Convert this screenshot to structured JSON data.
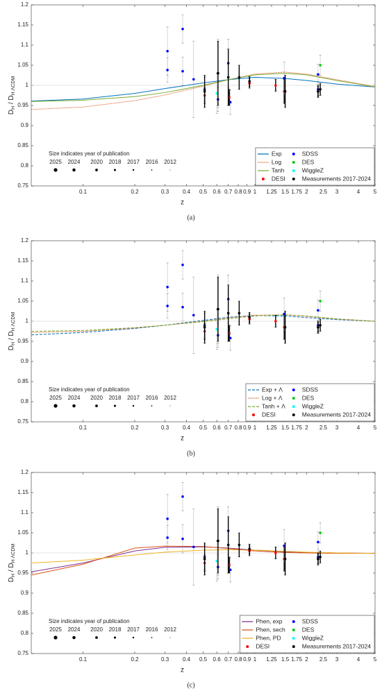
{
  "chart_data": [
    {
      "type": "scatter",
      "caption": "(a)",
      "xlabel": "z",
      "ylabel": [
        "D",
        "H",
        " / D",
        "H ΛCDM"
      ],
      "annotation": "Size indicates year of publication",
      "size_labels": [
        "2025",
        "2024",
        "2020",
        "2018",
        "2017",
        "2016",
        "2012"
      ],
      "xscale": "log",
      "xlim": [
        0.05,
        5
      ],
      "ylim": [
        0.75,
        1.2
      ],
      "xticks": [
        0.1,
        0.2,
        0.3,
        0.4,
        0.5,
        0.6,
        0.7,
        0.8,
        0.9,
        1,
        1.25,
        1.5,
        1.75,
        2,
        2.5,
        3,
        4,
        5
      ],
      "yticks": [
        0.75,
        0.8,
        0.85,
        0.9,
        0.95,
        1,
        1.05,
        1.1,
        1.15,
        1.2
      ],
      "reference_y": 1,
      "legend": "lower right",
      "curves": {
        "x": [
          0.05,
          0.1,
          0.2,
          0.3,
          0.5,
          0.7,
          1,
          1.5,
          2,
          3,
          5
        ],
        "series": [
          {
            "name": "Exp",
            "color": "#0072bd",
            "dash": "solid",
            "values": [
              0.961,
              0.966,
              0.98,
              0.992,
              1.006,
              1.014,
              1.02,
              1.017,
              1.012,
              1.003,
              0.996
            ]
          },
          {
            "name": "Log",
            "color": "#d95319",
            "dash": "dotted",
            "values": [
              0.94,
              0.946,
              0.962,
              0.976,
              0.998,
              1.014,
              1.028,
              1.033,
              1.028,
              1.014,
              0.997
            ]
          },
          {
            "name": "Tanh",
            "color": "#77ac30",
            "dash": "solid",
            "values": [
              0.96,
              0.963,
              0.972,
              0.982,
              1.0,
              1.014,
              1.026,
              1.03,
              1.026,
              1.012,
              0.996
            ]
          }
        ]
      },
      "points": [
        {
          "name": "DESI",
          "color": "#ff0000",
          "error_color": "#000000",
          "x": [
            0.51,
            0.71,
            0.93,
            1.32,
            1.48,
            2.33
          ],
          "values": [
            0.975,
            0.97,
            1.005,
            1.0,
            0.985,
            0.985
          ],
          "errors": [
            0.02,
            0.02,
            0.012,
            0.015,
            0.03,
            0.012
          ]
        },
        {
          "name": "SDSS",
          "color": "#0000ff",
          "error_color": "#888888",
          "x": [
            0.31,
            0.31,
            0.38,
            0.38,
            0.44,
            0.51,
            0.61,
            0.61,
            0.7,
            0.72,
            1.48,
            2.33,
            2.33
          ],
          "values": [
            1.085,
            1.038,
            1.14,
            1.035,
            1.015,
            0.99,
            1.03,
            0.965,
            1.055,
            0.958,
            1.018,
            1.027,
            0.99
          ],
          "errors": [
            0.06,
            0.03,
            0.035,
            0.035,
            0.095,
            0.03,
            0.085,
            0.03,
            0.06,
            0.03,
            0.04,
            0.025,
            0.02
          ]
        },
        {
          "name": "DES",
          "color": "#00cc00",
          "error_color": "#888888",
          "x": [
            2.4
          ],
          "values": [
            1.05
          ],
          "errors": [
            0.025
          ]
        },
        {
          "name": "WiggleZ",
          "color": "#00ffff",
          "error_color": "#888888",
          "x": [
            0.6
          ],
          "values": [
            0.98
          ],
          "errors": [
            0.05
          ]
        },
        {
          "name": "Measurements 2017-2024",
          "color": "#000000",
          "error_color": "#000000",
          "x": [
            0.51,
            0.61,
            0.7,
            0.81,
            0.93,
            1.5,
            2.33,
            2.4
          ],
          "values": [
            0.985,
            1.03,
            1.02,
            1.02,
            1.01,
            0.985,
            0.985,
            0.99
          ],
          "errors": [
            0.04,
            0.08,
            0.07,
            0.03,
            0.012,
            0.04,
            0.015,
            0.015
          ]
        }
      ]
    },
    {
      "type": "scatter",
      "caption": "(b)",
      "xlabel": "z",
      "ylabel": [
        "D",
        "H",
        " / D",
        "H ΛCDM"
      ],
      "annotation": "Size indicates year of publication",
      "size_labels": [
        "2025",
        "2024",
        "2020",
        "2018",
        "2017",
        "2016",
        "2012"
      ],
      "xscale": "log",
      "xlim": [
        0.05,
        5
      ],
      "ylim": [
        0.75,
        1.2
      ],
      "xticks": [
        0.1,
        0.2,
        0.3,
        0.4,
        0.5,
        0.6,
        0.7,
        0.8,
        0.9,
        1,
        1.25,
        1.5,
        1.75,
        2,
        2.5,
        3,
        4,
        5
      ],
      "yticks": [
        0.75,
        0.8,
        0.85,
        0.9,
        0.95,
        1,
        1.05,
        1.1,
        1.15,
        1.2
      ],
      "reference_y": 1,
      "legend": "lower right",
      "curves": {
        "x": [
          0.05,
          0.1,
          0.2,
          0.3,
          0.5,
          0.7,
          1,
          1.5,
          2,
          3,
          5
        ],
        "series": [
          {
            "name": "Exp + Λ",
            "color": "#0072bd",
            "dash": "dashed",
            "values": [
              0.966,
              0.972,
              0.982,
              0.99,
              1.002,
              1.01,
              1.014,
              1.013,
              1.009,
              1.004,
              1.0
            ]
          },
          {
            "name": "Log + Λ",
            "color": "#d95319",
            "dash": "dotted",
            "values": [
              0.972,
              0.975,
              0.983,
              0.99,
              1.0,
              1.008,
              1.015,
              1.016,
              1.012,
              1.005,
              1.0
            ]
          },
          {
            "name": "Tanh + Λ",
            "color": "#77ac30",
            "dash": "dashed",
            "values": [
              0.975,
              0.977,
              0.984,
              0.99,
              0.999,
              1.006,
              1.013,
              1.016,
              1.013,
              1.006,
              1.0
            ]
          }
        ]
      },
      "points": [
        {
          "name": "DESI",
          "color": "#ff0000",
          "error_color": "#000000",
          "x": [
            0.51,
            0.71,
            0.93,
            1.32,
            1.48,
            2.33
          ],
          "values": [
            0.975,
            0.97,
            1.005,
            1.0,
            0.985,
            0.985
          ],
          "errors": [
            0.02,
            0.02,
            0.012,
            0.015,
            0.03,
            0.012
          ]
        },
        {
          "name": "SDSS",
          "color": "#0000ff",
          "error_color": "#888888",
          "x": [
            0.31,
            0.31,
            0.38,
            0.38,
            0.44,
            0.51,
            0.61,
            0.61,
            0.7,
            0.72,
            1.48,
            2.33,
            2.33
          ],
          "values": [
            1.085,
            1.038,
            1.14,
            1.035,
            1.015,
            0.99,
            1.03,
            0.965,
            1.055,
            0.958,
            1.018,
            1.027,
            0.99
          ],
          "errors": [
            0.06,
            0.03,
            0.035,
            0.035,
            0.095,
            0.03,
            0.085,
            0.03,
            0.06,
            0.03,
            0.04,
            0.025,
            0.02
          ]
        },
        {
          "name": "DES",
          "color": "#00cc00",
          "error_color": "#888888",
          "x": [
            2.4
          ],
          "values": [
            1.05
          ],
          "errors": [
            0.025
          ]
        },
        {
          "name": "WiggleZ",
          "color": "#00ffff",
          "error_color": "#888888",
          "x": [
            0.6
          ],
          "values": [
            0.98
          ],
          "errors": [
            0.05
          ]
        },
        {
          "name": "Measurements 2017-2024",
          "color": "#000000",
          "error_color": "#000000",
          "x": [
            0.51,
            0.61,
            0.7,
            0.81,
            0.93,
            1.5,
            2.33,
            2.4
          ],
          "values": [
            0.985,
            1.03,
            1.02,
            1.02,
            1.01,
            0.985,
            0.985,
            0.99
          ],
          "errors": [
            0.04,
            0.08,
            0.07,
            0.03,
            0.012,
            0.04,
            0.015,
            0.015
          ]
        }
      ]
    },
    {
      "type": "scatter",
      "caption": "(c)",
      "xlabel": "z",
      "ylabel": [
        "D",
        "H",
        " / D",
        "H ΛCDM"
      ],
      "annotation": "Size indicates year of publication",
      "size_labels": [
        "2025",
        "2024",
        "2020",
        "2018",
        "2017",
        "2016",
        "2012"
      ],
      "xscale": "log",
      "xlim": [
        0.05,
        5
      ],
      "ylim": [
        0.75,
        1.2
      ],
      "xticks": [
        0.1,
        0.2,
        0.3,
        0.4,
        0.5,
        0.6,
        0.7,
        0.8,
        0.9,
        1,
        1.25,
        1.5,
        1.75,
        2,
        2.5,
        3,
        4,
        5
      ],
      "yticks": [
        0.75,
        0.8,
        0.85,
        0.9,
        0.95,
        1,
        1.05,
        1.1,
        1.15,
        1.2
      ],
      "reference_y": 1,
      "legend": "lower right",
      "curves": {
        "x": [
          0.05,
          0.1,
          0.2,
          0.3,
          0.5,
          0.7,
          1,
          1.5,
          2,
          3,
          5
        ],
        "series": [
          {
            "name": "Phen, exp",
            "color": "#7e2f8e",
            "dash": "solid",
            "values": [
              0.953,
              0.975,
              1.005,
              1.014,
              1.015,
              1.012,
              1.007,
              1.003,
              1.001,
              1.0,
              0.999
            ]
          },
          {
            "name": "Phen, sech",
            "color": "#d95319",
            "dash": "solid",
            "values": [
              0.945,
              0.972,
              1.012,
              1.017,
              1.016,
              1.011,
              1.005,
              1.001,
              1.0,
              0.999,
              0.999
            ]
          },
          {
            "name": "Phen, PD",
            "color": "#edb120",
            "dash": "solid",
            "values": [
              0.975,
              0.982,
              0.995,
              1.002,
              1.007,
              1.008,
              1.007,
              1.004,
              1.002,
              1.0,
              0.999
            ]
          }
        ]
      },
      "points": [
        {
          "name": "DESI",
          "color": "#ff0000",
          "error_color": "#000000",
          "x": [
            0.51,
            0.71,
            0.93,
            1.32,
            1.48,
            2.33
          ],
          "values": [
            0.975,
            0.97,
            1.005,
            1.0,
            0.985,
            0.985
          ],
          "errors": [
            0.02,
            0.02,
            0.012,
            0.015,
            0.03,
            0.012
          ]
        },
        {
          "name": "SDSS",
          "color": "#0000ff",
          "error_color": "#888888",
          "x": [
            0.31,
            0.31,
            0.38,
            0.38,
            0.44,
            0.51,
            0.61,
            0.61,
            0.7,
            0.72,
            1.48,
            2.33,
            2.33
          ],
          "values": [
            1.085,
            1.038,
            1.14,
            1.035,
            1.015,
            0.99,
            1.03,
            0.965,
            1.055,
            0.958,
            1.018,
            1.027,
            0.99
          ],
          "errors": [
            0.06,
            0.03,
            0.035,
            0.035,
            0.095,
            0.03,
            0.085,
            0.03,
            0.06,
            0.03,
            0.04,
            0.025,
            0.02
          ]
        },
        {
          "name": "DES",
          "color": "#00cc00",
          "error_color": "#888888",
          "x": [
            2.4
          ],
          "values": [
            1.05
          ],
          "errors": [
            0.025
          ]
        },
        {
          "name": "WiggleZ",
          "color": "#00ffff",
          "error_color": "#888888",
          "x": [
            0.6
          ],
          "values": [
            0.98
          ],
          "errors": [
            0.05
          ]
        },
        {
          "name": "Measurements 2017-2024",
          "color": "#000000",
          "error_color": "#000000",
          "x": [
            0.51,
            0.61,
            0.7,
            0.81,
            0.93,
            1.5,
            2.33,
            2.4
          ],
          "values": [
            0.985,
            1.03,
            1.02,
            1.02,
            1.01,
            0.985,
            0.985,
            0.99
          ],
          "errors": [
            0.04,
            0.08,
            0.07,
            0.03,
            0.012,
            0.04,
            0.015,
            0.015
          ]
        }
      ]
    }
  ]
}
